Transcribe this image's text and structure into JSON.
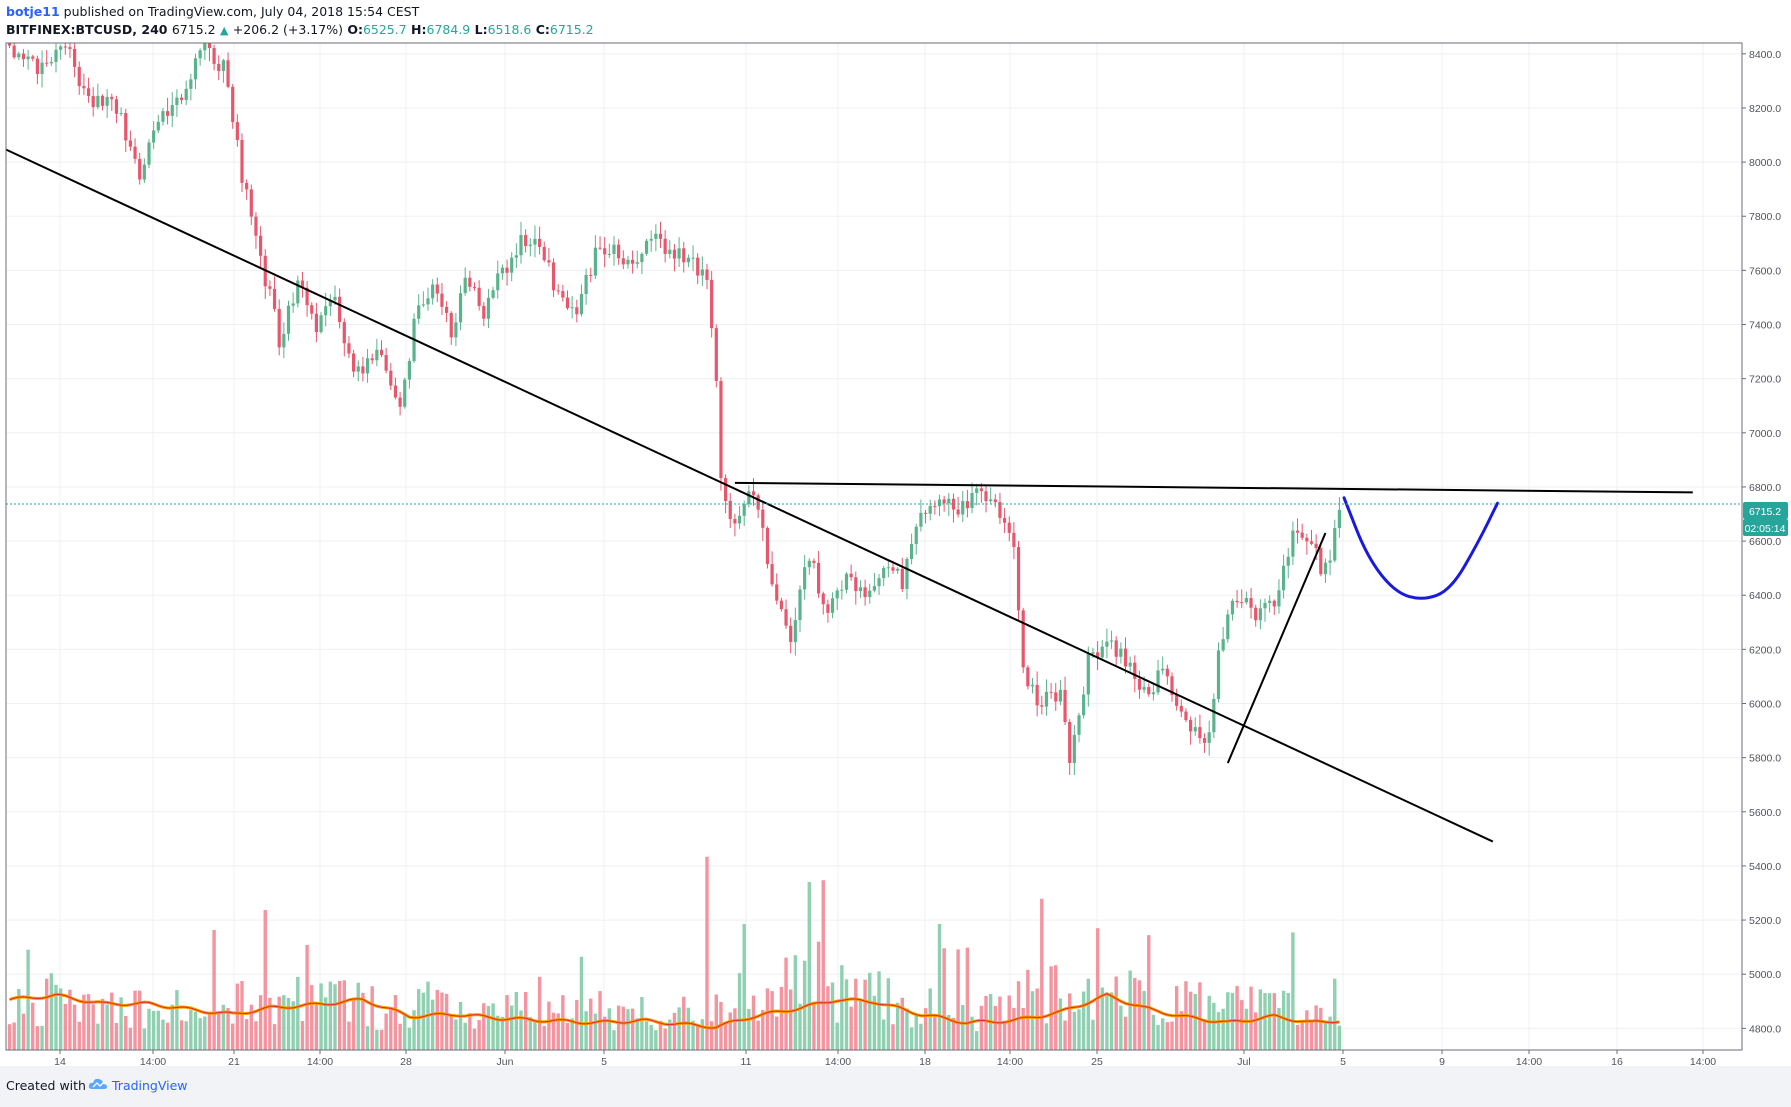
{
  "header": {
    "author": "botje11",
    "published": "published on TradingView.com, July 04, 2018 15:54 CEST",
    "symbol": "BITFINEX:BTCUSD, 240",
    "last": "6715.2",
    "change": "+206.2 (+3.17%)",
    "o_label": "O:",
    "o_value": "6525.7",
    "h_label": "H:",
    "h_value": "6784.9",
    "l_label": "L:",
    "l_value": "6518.6",
    "c_label": "C:",
    "c_value": "6715.2"
  },
  "price_label": "6715.2",
  "countdown_label": "02:05:14",
  "footer": {
    "created_with": "Created with",
    "brand": "TradingView"
  },
  "colors": {
    "up": "#5ab38c",
    "down": "#e8566c",
    "volume_up": "#8fd0b0",
    "volume_down": "#f3949f",
    "ma_outer": "#ff9800",
    "ma_inner": "#d32f2f",
    "trendline": "#000000",
    "drawing": "#1a1adc",
    "price_line": "#26a69a"
  },
  "chart_data": {
    "type": "candlestick",
    "ylim": [
      4720,
      8440
    ],
    "y_ticks": [
      "8400.0",
      "8200.0",
      "8000.0",
      "7800.0",
      "7600.0",
      "7400.0",
      "7200.0",
      "7000.0",
      "6800.0",
      "6600.0",
      "6400.0",
      "6200.0",
      "6000.0",
      "5800.0",
      "5600.0",
      "5400.0",
      "5200.0",
      "5000.0",
      "4800.0"
    ],
    "x_ticks": [
      "14",
      "14:00",
      "21",
      "14:00",
      "28",
      "Jun",
      "5",
      "11",
      "14:00",
      "18",
      "14:00",
      "25",
      "Jul",
      "5",
      "9",
      "14:00",
      "16",
      "14:00"
    ],
    "price_waypoints": [
      [
        0,
        8400
      ],
      [
        6,
        8350
      ],
      [
        12,
        8420
      ],
      [
        18,
        8200
      ],
      [
        22,
        8250
      ],
      [
        28,
        7950
      ],
      [
        32,
        8150
      ],
      [
        38,
        8280
      ],
      [
        42,
        8420
      ],
      [
        46,
        8350
      ],
      [
        50,
        7950
      ],
      [
        54,
        7650
      ],
      [
        58,
        7350
      ],
      [
        62,
        7550
      ],
      [
        66,
        7400
      ],
      [
        70,
        7500
      ],
      [
        74,
        7200
      ],
      [
        80,
        7300
      ],
      [
        84,
        7100
      ],
      [
        88,
        7500
      ],
      [
        92,
        7530
      ],
      [
        95,
        7350
      ],
      [
        98,
        7600
      ],
      [
        102,
        7450
      ],
      [
        106,
        7600
      ],
      [
        110,
        7700
      ],
      [
        114,
        7720
      ],
      [
        118,
        7500
      ],
      [
        122,
        7450
      ],
      [
        126,
        7650
      ],
      [
        130,
        7700
      ],
      [
        134,
        7600
      ],
      [
        138,
        7720
      ],
      [
        142,
        7650
      ],
      [
        146,
        7660
      ],
      [
        150,
        7550
      ],
      [
        152,
        7200
      ],
      [
        153,
        6820
      ],
      [
        156,
        6660
      ],
      [
        160,
        6790
      ],
      [
        164,
        6450
      ],
      [
        168,
        6250
      ],
      [
        172,
        6550
      ],
      [
        176,
        6320
      ],
      [
        180,
        6500
      ],
      [
        184,
        6380
      ],
      [
        188,
        6530
      ],
      [
        192,
        6450
      ],
      [
        196,
        6720
      ],
      [
        200,
        6750
      ],
      [
        204,
        6700
      ],
      [
        208,
        6760
      ],
      [
        212,
        6750
      ],
      [
        216,
        6550
      ],
      [
        218,
        6100
      ],
      [
        222,
        6000
      ],
      [
        226,
        6050
      ],
      [
        228,
        5800
      ],
      [
        232,
        6150
      ],
      [
        236,
        6230
      ],
      [
        240,
        6150
      ],
      [
        244,
        6050
      ],
      [
        248,
        6100
      ],
      [
        252,
        6000
      ],
      [
        256,
        5850
      ],
      [
        258,
        5900
      ],
      [
        260,
        6200
      ],
      [
        264,
        6400
      ],
      [
        268,
        6330
      ],
      [
        272,
        6350
      ],
      [
        276,
        6650
      ],
      [
        280,
        6620
      ],
      [
        282,
        6500
      ],
      [
        284,
        6560
      ],
      [
        286,
        6715
      ]
    ],
    "volume_waypoints": [
      [
        0,
        0.26
      ],
      [
        10,
        0.24
      ],
      [
        20,
        0.2
      ],
      [
        30,
        0.22
      ],
      [
        40,
        0.2
      ],
      [
        50,
        0.22
      ],
      [
        60,
        0.26
      ],
      [
        70,
        0.24
      ],
      [
        80,
        0.2
      ],
      [
        90,
        0.22
      ],
      [
        100,
        0.2
      ],
      [
        110,
        0.18
      ],
      [
        120,
        0.2
      ],
      [
        130,
        0.18
      ],
      [
        140,
        0.16
      ],
      [
        150,
        0.18
      ],
      [
        155,
        0.24
      ],
      [
        160,
        0.28
      ],
      [
        170,
        0.3
      ],
      [
        180,
        0.28
      ],
      [
        190,
        0.24
      ],
      [
        200,
        0.18
      ],
      [
        210,
        0.2
      ],
      [
        220,
        0.26
      ],
      [
        230,
        0.32
      ],
      [
        240,
        0.26
      ],
      [
        250,
        0.22
      ],
      [
        260,
        0.2
      ],
      [
        270,
        0.2
      ],
      [
        280,
        0.18
      ],
      [
        286,
        0.2
      ]
    ],
    "volume_spikes": [
      [
        64,
        0.5
      ],
      [
        150,
        0.92
      ],
      [
        158,
        0.6
      ],
      [
        172,
        0.8
      ],
      [
        200,
        0.6
      ],
      [
        222,
        0.72
      ],
      [
        234,
        0.58
      ],
      [
        276,
        0.56
      ]
    ],
    "volume_ma_waypoints": [
      [
        0,
        0.24
      ],
      [
        10,
        0.26
      ],
      [
        20,
        0.22
      ],
      [
        30,
        0.22
      ],
      [
        40,
        0.19
      ],
      [
        48,
        0.17
      ],
      [
        56,
        0.2
      ],
      [
        68,
        0.22
      ],
      [
        76,
        0.24
      ],
      [
        86,
        0.16
      ],
      [
        96,
        0.17
      ],
      [
        106,
        0.15
      ],
      [
        116,
        0.14
      ],
      [
        126,
        0.13
      ],
      [
        136,
        0.14
      ],
      [
        146,
        0.12
      ],
      [
        152,
        0.11
      ],
      [
        160,
        0.16
      ],
      [
        170,
        0.2
      ],
      [
        178,
        0.24
      ],
      [
        186,
        0.23
      ],
      [
        196,
        0.17
      ],
      [
        206,
        0.13
      ],
      [
        216,
        0.14
      ],
      [
        226,
        0.18
      ],
      [
        236,
        0.26
      ],
      [
        244,
        0.2
      ],
      [
        252,
        0.16
      ],
      [
        262,
        0.13
      ],
      [
        272,
        0.16
      ],
      [
        280,
        0.13
      ],
      [
        286,
        0.14
      ]
    ],
    "trendlines": [
      {
        "from": [
          -65,
          8560
        ],
        "to": [
          319,
          5490
        ]
      },
      {
        "from": [
          156,
          6815
        ],
        "to": [
          362,
          6780
        ]
      },
      {
        "from": [
          262,
          5780
        ],
        "to": [
          283,
          6630
        ]
      }
    ],
    "projection_curve": [
      [
        287,
        6760
      ],
      [
        292,
        6540
      ],
      [
        298,
        6410
      ],
      [
        304,
        6380
      ],
      [
        310,
        6420
      ],
      [
        316,
        6600
      ],
      [
        320,
        6740
      ]
    ]
  }
}
